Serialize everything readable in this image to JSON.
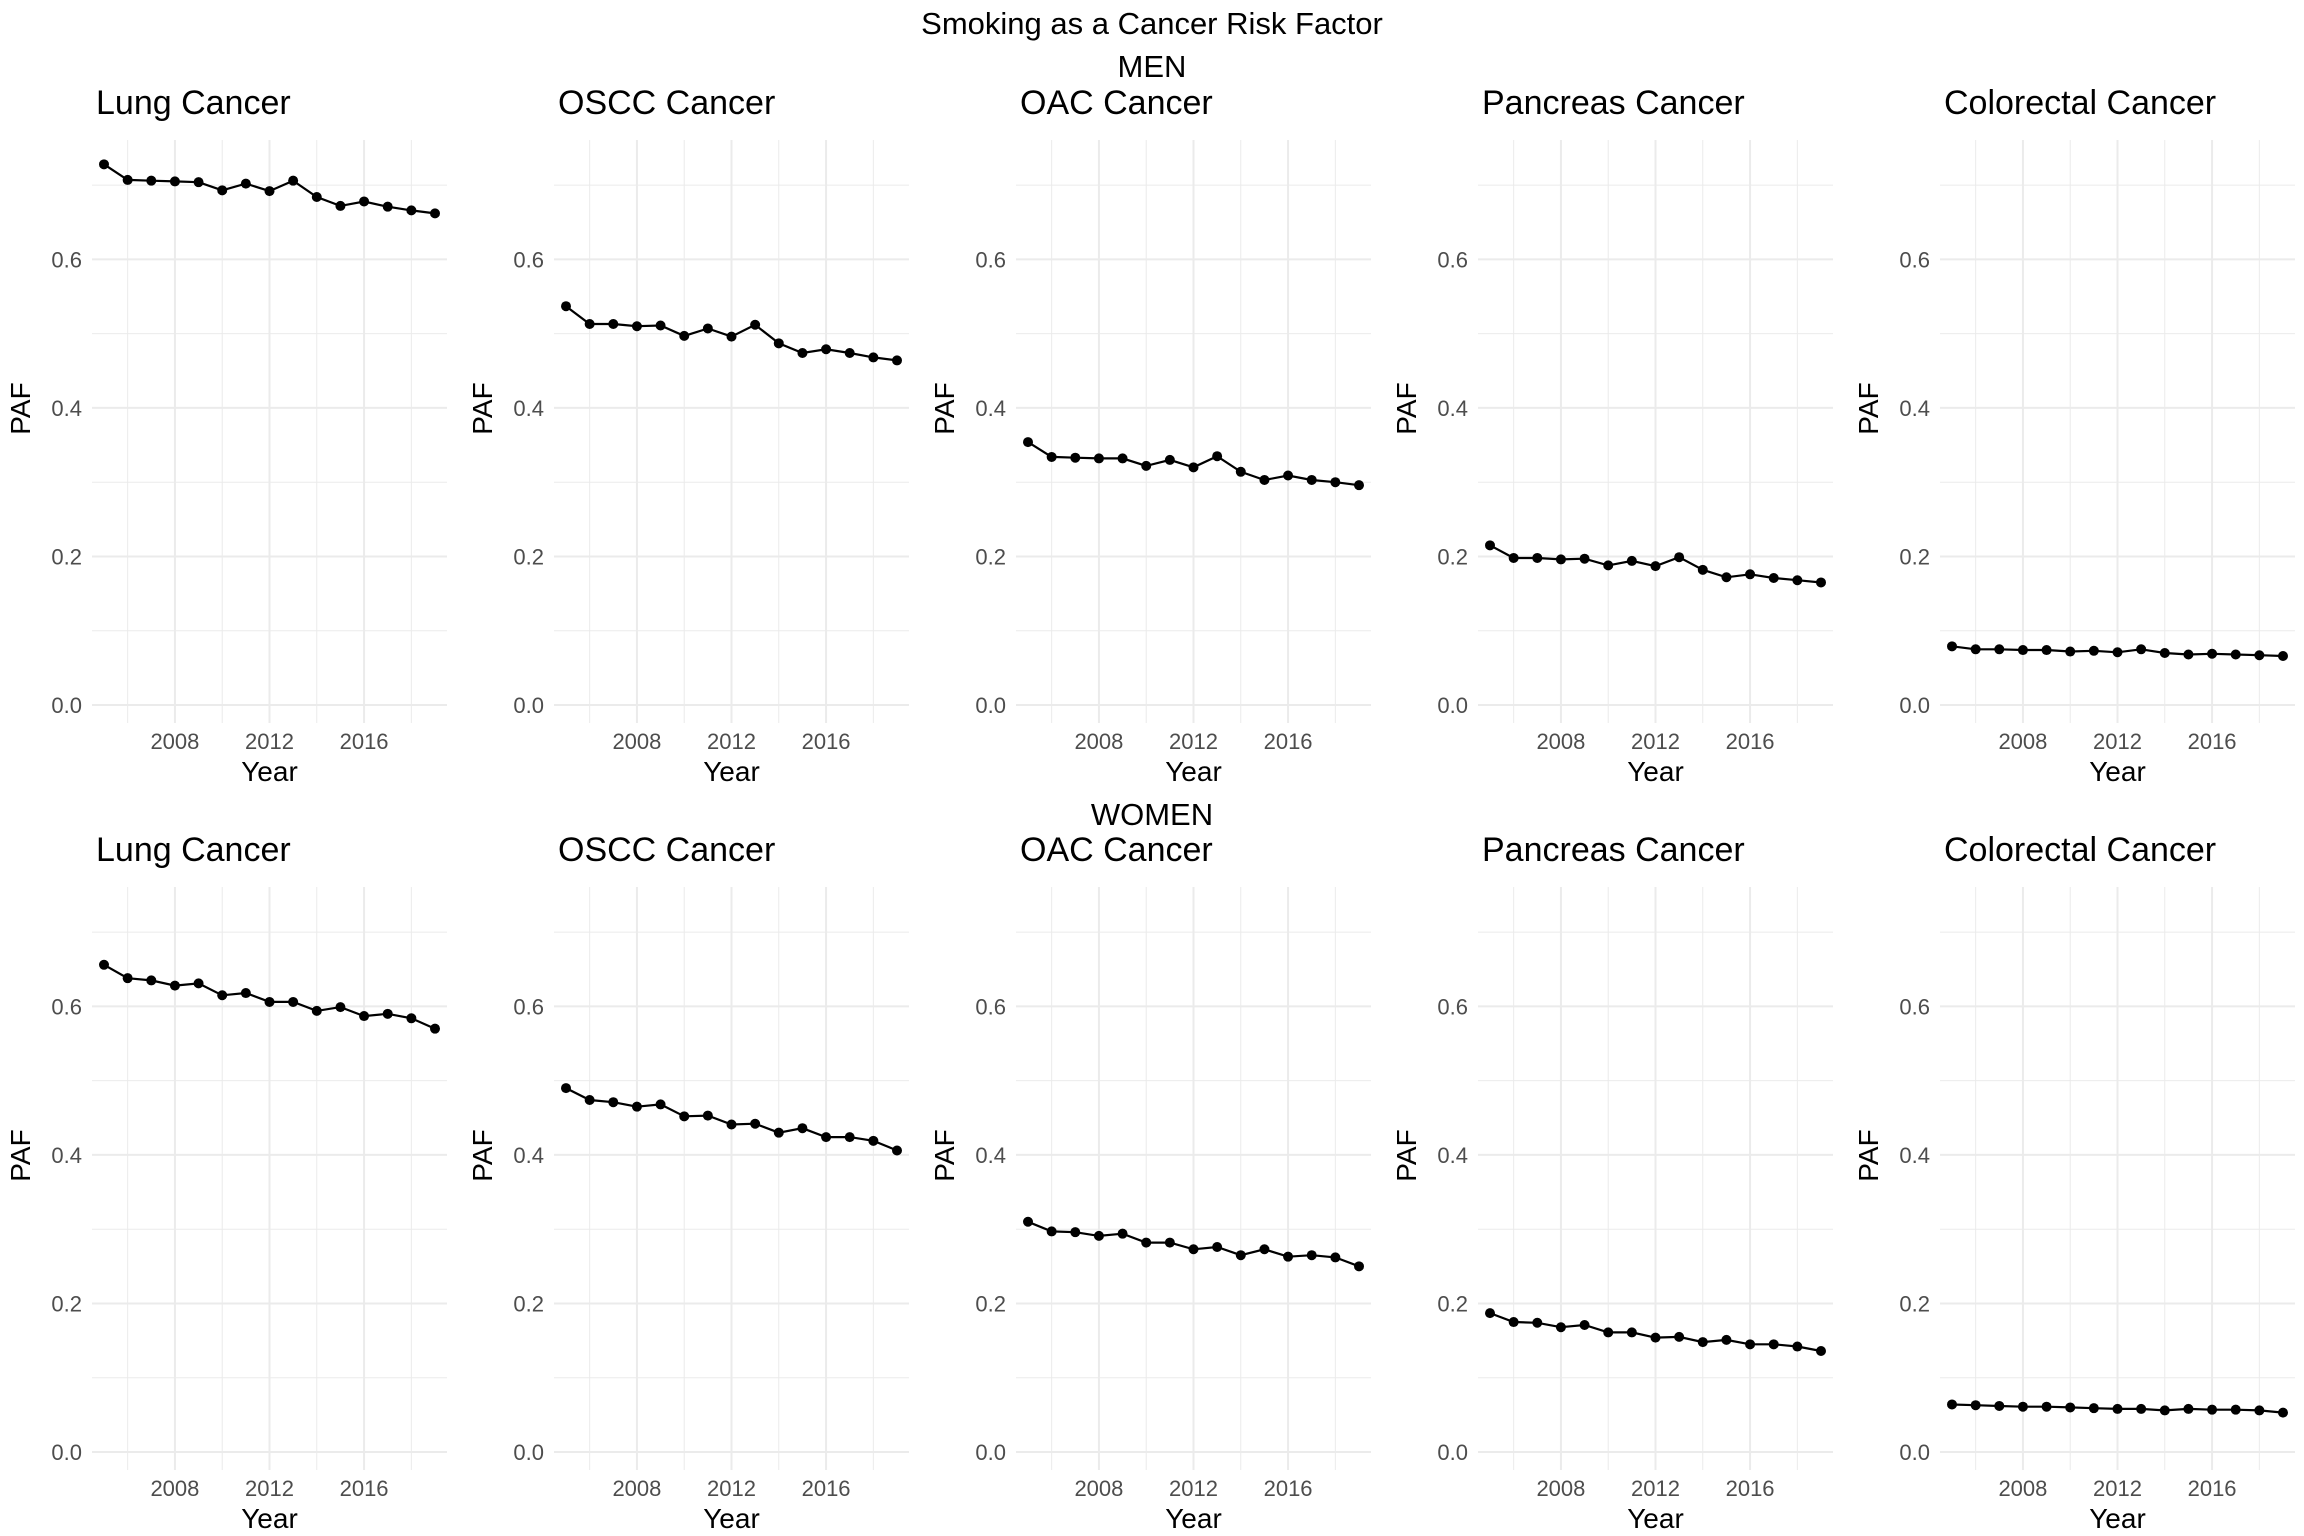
{
  "figure": {
    "title": "Smoking as a Cancer Risk Factor",
    "line_color": "#000000",
    "grid_color": "#ebebeb"
  },
  "chart_data": [
    {
      "type": "line",
      "group": "MEN",
      "title": "Lung Cancer",
      "xlabel": "Year",
      "ylabel": "PAF",
      "x": [
        2005,
        2006,
        2007,
        2008,
        2009,
        2010,
        2011,
        2012,
        2013,
        2014,
        2015,
        2016,
        2017,
        2018,
        2019
      ],
      "y": [
        0.728,
        0.707,
        0.706,
        0.705,
        0.704,
        0.693,
        0.702,
        0.692,
        0.706,
        0.684,
        0.672,
        0.678,
        0.671,
        0.666,
        0.662
      ],
      "xlim": [
        2005,
        2019
      ],
      "ylim": [
        0,
        0.75
      ],
      "xticks": [
        2008,
        2012,
        2016
      ],
      "yticks": [
        0.0,
        0.2,
        0.4,
        0.6
      ],
      "grid": true
    },
    {
      "type": "line",
      "group": "MEN",
      "title": "OSCC Cancer",
      "xlabel": "Year",
      "ylabel": "PAF",
      "x": [
        2005,
        2006,
        2007,
        2008,
        2009,
        2010,
        2011,
        2012,
        2013,
        2014,
        2015,
        2016,
        2017,
        2018,
        2019
      ],
      "y": [
        0.537,
        0.513,
        0.513,
        0.51,
        0.511,
        0.497,
        0.507,
        0.496,
        0.512,
        0.487,
        0.474,
        0.479,
        0.474,
        0.468,
        0.464
      ],
      "xlim": [
        2005,
        2019
      ],
      "ylim": [
        0,
        0.75
      ],
      "xticks": [
        2008,
        2012,
        2016
      ],
      "yticks": [
        0.0,
        0.2,
        0.4,
        0.6
      ],
      "grid": true
    },
    {
      "type": "line",
      "group": "MEN",
      "title": "OAC Cancer",
      "xlabel": "Year",
      "ylabel": "PAF",
      "x": [
        2005,
        2006,
        2007,
        2008,
        2009,
        2010,
        2011,
        2012,
        2013,
        2014,
        2015,
        2016,
        2017,
        2018,
        2019
      ],
      "y": [
        0.354,
        0.334,
        0.333,
        0.332,
        0.332,
        0.322,
        0.33,
        0.32,
        0.335,
        0.314,
        0.303,
        0.309,
        0.303,
        0.3,
        0.296
      ],
      "xlim": [
        2005,
        2019
      ],
      "ylim": [
        0,
        0.75
      ],
      "xticks": [
        2008,
        2012,
        2016
      ],
      "yticks": [
        0.0,
        0.2,
        0.4,
        0.6
      ],
      "grid": true
    },
    {
      "type": "line",
      "group": "MEN",
      "title": "Pancreas Cancer",
      "xlabel": "Year",
      "ylabel": "PAF",
      "x": [
        2005,
        2006,
        2007,
        2008,
        2009,
        2010,
        2011,
        2012,
        2013,
        2014,
        2015,
        2016,
        2017,
        2018,
        2019
      ],
      "y": [
        0.215,
        0.198,
        0.198,
        0.196,
        0.197,
        0.188,
        0.194,
        0.187,
        0.199,
        0.182,
        0.172,
        0.176,
        0.171,
        0.168,
        0.165
      ],
      "xlim": [
        2005,
        2019
      ],
      "ylim": [
        0,
        0.75
      ],
      "xticks": [
        2008,
        2012,
        2016
      ],
      "yticks": [
        0.0,
        0.2,
        0.4,
        0.6
      ],
      "grid": true
    },
    {
      "type": "line",
      "group": "MEN",
      "title": "Colorectal Cancer",
      "xlabel": "Year",
      "ylabel": "PAF",
      "x": [
        2005,
        2006,
        2007,
        2008,
        2009,
        2010,
        2011,
        2012,
        2013,
        2014,
        2015,
        2016,
        2017,
        2018,
        2019
      ],
      "y": [
        0.079,
        0.075,
        0.075,
        0.074,
        0.074,
        0.072,
        0.073,
        0.071,
        0.075,
        0.07,
        0.068,
        0.069,
        0.068,
        0.067,
        0.066
      ],
      "xlim": [
        2005,
        2019
      ],
      "ylim": [
        0,
        0.75
      ],
      "xticks": [
        2008,
        2012,
        2016
      ],
      "yticks": [
        0.0,
        0.2,
        0.4,
        0.6
      ],
      "grid": true
    },
    {
      "type": "line",
      "group": "WOMEN",
      "title": "Lung Cancer",
      "xlabel": "Year",
      "ylabel": "PAF",
      "x": [
        2005,
        2006,
        2007,
        2008,
        2009,
        2010,
        2011,
        2012,
        2013,
        2014,
        2015,
        2016,
        2017,
        2018,
        2019
      ],
      "y": [
        0.656,
        0.638,
        0.635,
        0.628,
        0.631,
        0.615,
        0.618,
        0.606,
        0.606,
        0.594,
        0.599,
        0.587,
        0.59,
        0.584,
        0.57
      ],
      "xlim": [
        2005,
        2019
      ],
      "ylim": [
        0,
        0.75
      ],
      "xticks": [
        2008,
        2012,
        2016
      ],
      "yticks": [
        0.0,
        0.2,
        0.4,
        0.6
      ],
      "grid": true
    },
    {
      "type": "line",
      "group": "WOMEN",
      "title": "OSCC Cancer",
      "xlabel": "Year",
      "ylabel": "PAF",
      "x": [
        2005,
        2006,
        2007,
        2008,
        2009,
        2010,
        2011,
        2012,
        2013,
        2014,
        2015,
        2016,
        2017,
        2018,
        2019
      ],
      "y": [
        0.49,
        0.474,
        0.471,
        0.465,
        0.468,
        0.452,
        0.453,
        0.441,
        0.442,
        0.43,
        0.436,
        0.424,
        0.424,
        0.419,
        0.406
      ],
      "xlim": [
        2005,
        2019
      ],
      "ylim": [
        0,
        0.75
      ],
      "xticks": [
        2008,
        2012,
        2016
      ],
      "yticks": [
        0.0,
        0.2,
        0.4,
        0.6
      ],
      "grid": true
    },
    {
      "type": "line",
      "group": "WOMEN",
      "title": "OAC Cancer",
      "xlabel": "Year",
      "ylabel": "PAF",
      "x": [
        2005,
        2006,
        2007,
        2008,
        2009,
        2010,
        2011,
        2012,
        2013,
        2014,
        2015,
        2016,
        2017,
        2018,
        2019
      ],
      "y": [
        0.31,
        0.297,
        0.296,
        0.291,
        0.294,
        0.282,
        0.282,
        0.273,
        0.276,
        0.265,
        0.273,
        0.263,
        0.265,
        0.262,
        0.25
      ],
      "xlim": [
        2005,
        2019
      ],
      "ylim": [
        0,
        0.75
      ],
      "xticks": [
        2008,
        2012,
        2016
      ],
      "yticks": [
        0.0,
        0.2,
        0.4,
        0.6
      ],
      "grid": true
    },
    {
      "type": "line",
      "group": "WOMEN",
      "title": "Pancreas Cancer",
      "xlabel": "Year",
      "ylabel": "PAF",
      "x": [
        2005,
        2006,
        2007,
        2008,
        2009,
        2010,
        2011,
        2012,
        2013,
        2014,
        2015,
        2016,
        2017,
        2018,
        2019
      ],
      "y": [
        0.187,
        0.175,
        0.174,
        0.168,
        0.171,
        0.161,
        0.161,
        0.154,
        0.155,
        0.148,
        0.151,
        0.145,
        0.145,
        0.142,
        0.136
      ],
      "xlim": [
        2005,
        2019
      ],
      "ylim": [
        0,
        0.75
      ],
      "xticks": [
        2008,
        2012,
        2016
      ],
      "yticks": [
        0.0,
        0.2,
        0.4,
        0.6
      ],
      "grid": true
    },
    {
      "type": "line",
      "group": "WOMEN",
      "title": "Colorectal Cancer",
      "xlabel": "Year",
      "ylabel": "PAF",
      "x": [
        2005,
        2006,
        2007,
        2008,
        2009,
        2010,
        2011,
        2012,
        2013,
        2014,
        2015,
        2016,
        2017,
        2018,
        2019
      ],
      "y": [
        0.064,
        0.063,
        0.062,
        0.061,
        0.061,
        0.06,
        0.059,
        0.058,
        0.058,
        0.056,
        0.058,
        0.057,
        0.057,
        0.056,
        0.053
      ],
      "xlim": [
        2005,
        2019
      ],
      "ylim": [
        0,
        0.75
      ],
      "xticks": [
        2008,
        2012,
        2016
      ],
      "yticks": [
        0.0,
        0.2,
        0.4,
        0.6
      ],
      "grid": true
    }
  ]
}
